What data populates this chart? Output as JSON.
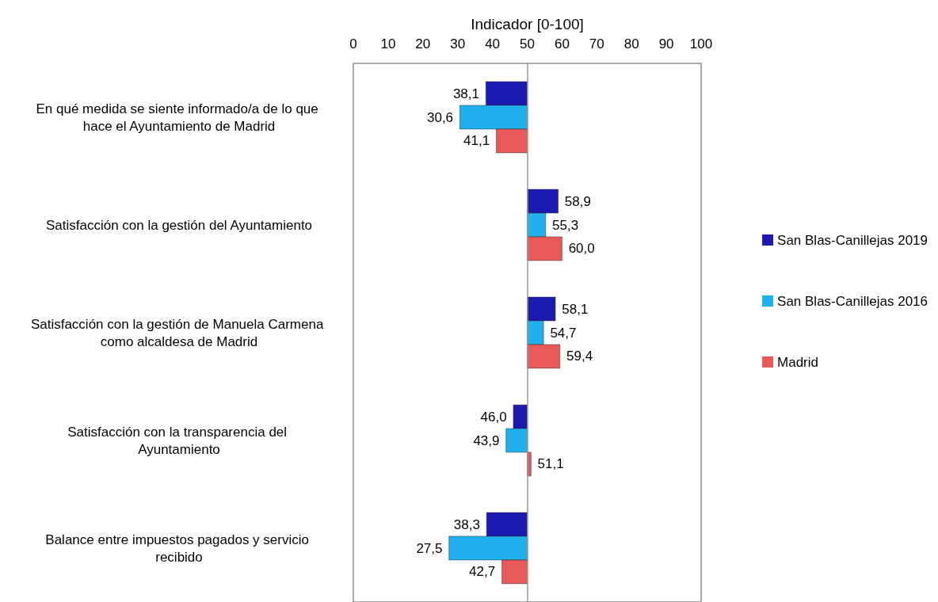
{
  "chart_data": {
    "type": "bar",
    "orientation": "horizontal",
    "xlabel": "Indicador [0-100]",
    "categories": [
      "En qué medida se siente informado/a de lo que hace el Ayuntamiento de Madrid",
      "Satisfacción con la gestión del Ayuntamiento",
      "Satisfacción con la gestión de Manuela Carmena como alcaldesa de Madrid",
      "Satisfacción con la transparencia del Ayuntamiento",
      "Balance entre impuestos pagados y servicio recibido"
    ],
    "series": [
      {
        "name": "San Blas-Canillejas 2019",
        "color": "#1a1ab0",
        "base": [
          50,
          50,
          50,
          50,
          50
        ],
        "values": [
          -11.9,
          8.9,
          8.1,
          -4.0,
          -11.7
        ],
        "value_labels": [
          "38,1",
          "58,9",
          "58,1",
          "46,0",
          "38,3"
        ]
      },
      {
        "name": "San Blas-Canillejas 2016",
        "color": "#21b0ee",
        "base": [
          50,
          50,
          50,
          50,
          50
        ],
        "values": [
          -19.4,
          5.3,
          4.7,
          -6.1,
          -22.5
        ],
        "value_labels": [
          "30,6",
          "55,3",
          "54,7",
          "43,9",
          "27,5"
        ]
      },
      {
        "name": "Madrid",
        "color": "#e85a5a",
        "base": [
          50,
          50,
          50,
          50,
          50
        ],
        "values": [
          -8.9,
          10.0,
          9.4,
          1.1,
          -7.3
        ],
        "value_labels": [
          "41,1",
          "60,0",
          "59,4",
          "51,1",
          "42,7"
        ]
      }
    ],
    "xlim": [
      0,
      100
    ],
    "xticks": [
      0,
      10,
      20,
      30,
      40,
      50,
      60,
      70,
      80,
      90,
      100
    ],
    "ref_lines": [
      {
        "axis": "x",
        "value": 50,
        "label": null,
        "color": "#999999"
      }
    ],
    "grid": false,
    "legend": "right"
  }
}
